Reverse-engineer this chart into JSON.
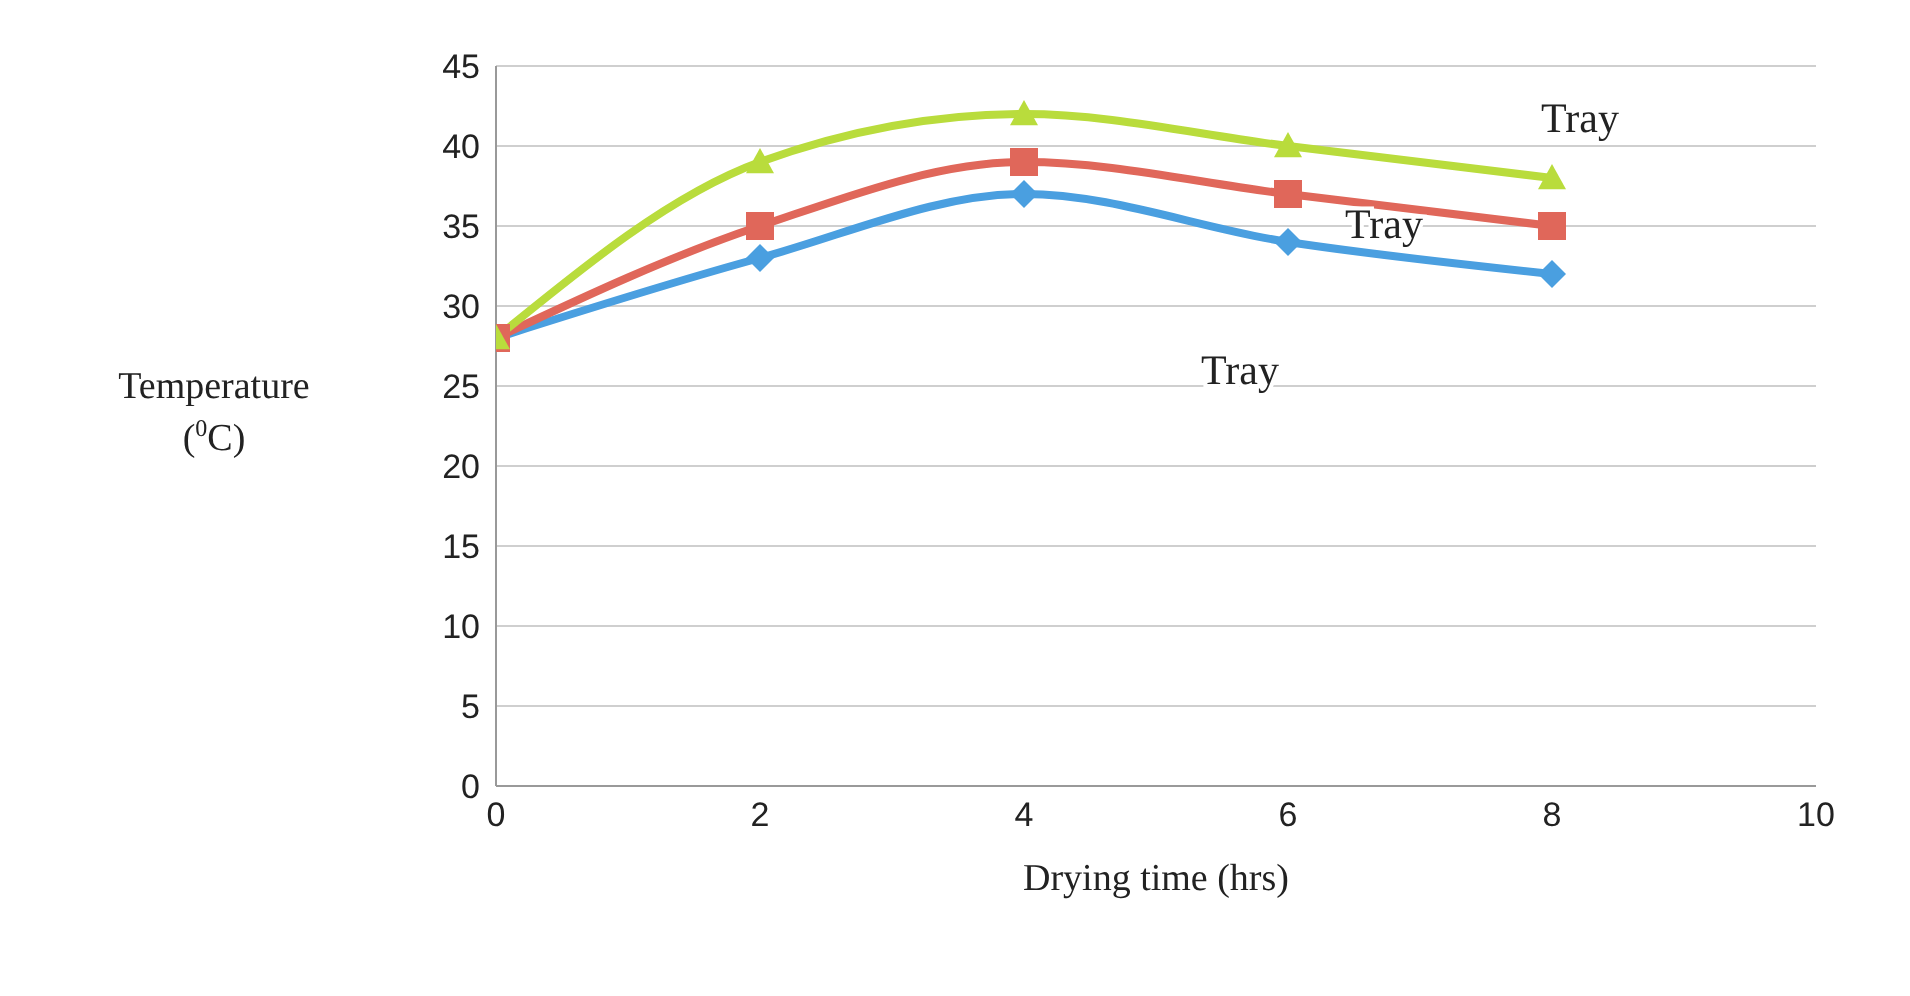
{
  "chart_data": {
    "type": "line",
    "xlabel": "Drying time (hrs)",
    "ylabel": "Temperature ($^{0}$C)",
    "x": [
      0,
      2,
      4,
      6,
      8
    ],
    "series": [
      {
        "name": "Tray",
        "color": "#4a9fe0",
        "values": [
          28,
          33,
          37,
          34,
          32
        ],
        "marker": "diamond"
      },
      {
        "name": "Tray",
        "color": "#e0675a",
        "values": [
          28,
          35,
          39,
          37,
          35
        ],
        "marker": "square"
      },
      {
        "name": "Tray",
        "color": "#b9dc3c",
        "values": [
          28,
          39,
          42,
          40,
          38
        ],
        "marker": "triangle"
      }
    ],
    "xlim": [
      0,
      10
    ],
    "xticks": [
      0,
      2,
      4,
      6,
      8,
      10
    ],
    "ylim": [
      0,
      45
    ],
    "yticks": [
      0,
      5,
      10,
      15,
      20,
      25,
      30,
      35,
      40,
      45
    ],
    "grid": "y"
  }
}
